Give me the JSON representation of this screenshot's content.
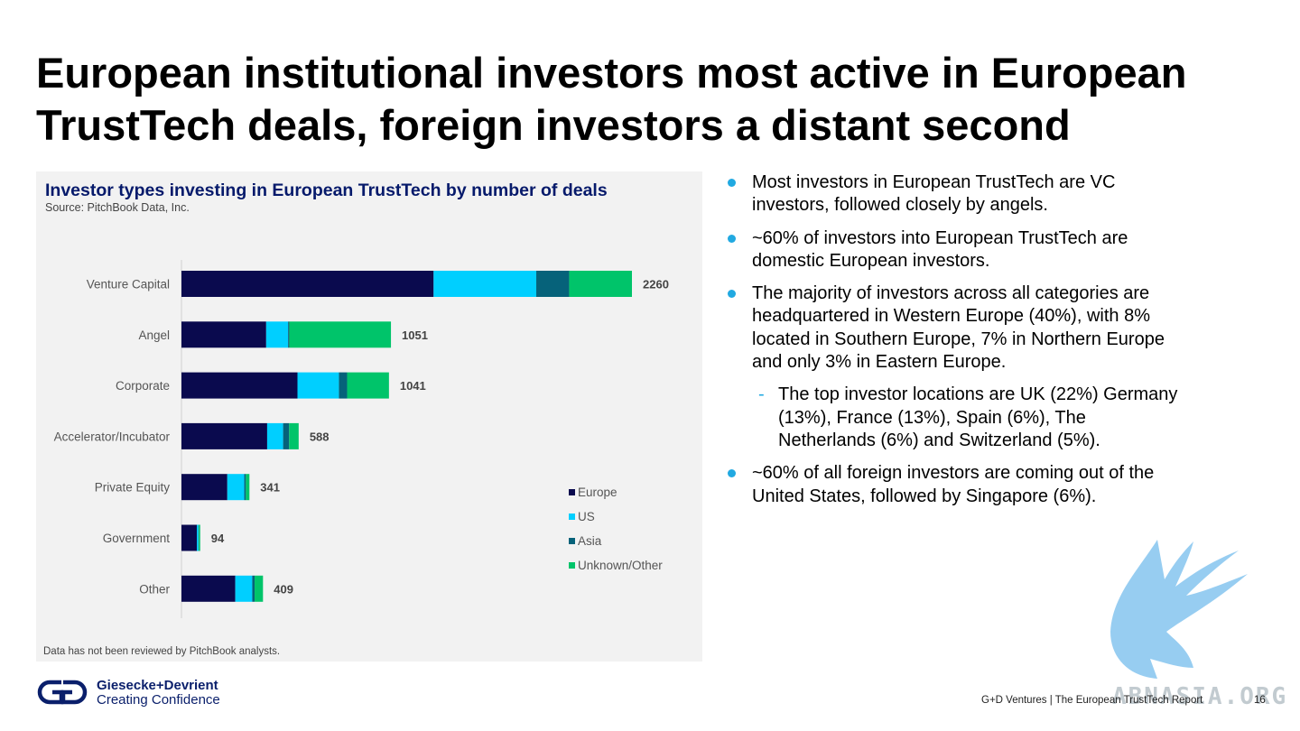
{
  "slide": {
    "title": "European institutional investors most active in European TrustTech deals, foreign investors a distant second",
    "page_number": "16",
    "footer": "G+D Ventures  |  The European TrustTech Report"
  },
  "chart_panel": {
    "title": "Investor types investing in European TrustTech by number of deals",
    "source": "Source: PitchBook Data, Inc.",
    "footnote": "Data has not been reviewed by PitchBook analysts."
  },
  "chart_data": {
    "type": "bar",
    "orientation": "horizontal",
    "stacked": true,
    "title": "Investor types investing in European TrustTech by number of deals",
    "categories": [
      "Venture Capital",
      "Angel",
      "Corporate",
      "Accelerator/Incubator",
      "Private Equity",
      "Government",
      "Other"
    ],
    "totals": [
      2260,
      1051,
      1041,
      588,
      341,
      94,
      409
    ],
    "series": [
      {
        "name": "Europe",
        "color": "#0a0a4e",
        "values": [
          1265,
          425,
          582,
          430,
          230,
          77,
          270
        ]
      },
      {
        "name": "US",
        "color": "#00cfff",
        "values": [
          515,
          110,
          208,
          80,
          85,
          8,
          85
        ]
      },
      {
        "name": "Asia",
        "color": "#06627a",
        "values": [
          165,
          6,
          41,
          30,
          8,
          2,
          12
        ]
      },
      {
        "name": "Unknown/Other",
        "color": "#00c46a",
        "values": [
          315,
          510,
          210,
          48,
          18,
          7,
          42
        ]
      }
    ],
    "xlim": [
      0,
      2260
    ],
    "grid": false,
    "legend_position": "right"
  },
  "bullets": [
    {
      "type": "bullet",
      "text": "Most investors in European TrustTech are VC investors, followed closely by angels."
    },
    {
      "type": "bullet",
      "text": "~60% of investors into European TrustTech are domestic European investors."
    },
    {
      "type": "bullet",
      "text": "The majority of  investors across all categories are headquartered in Western Europe (40%), with 8% located in Southern Europe, 7% in Northern Europe and only 3% in Eastern Europe."
    },
    {
      "type": "sub",
      "text": "The top investor locations are UK (22%) Germany (13%), France (13%), Spain (6%), The Netherlands (6%) and Switzerland (5%)."
    },
    {
      "type": "bullet",
      "text": "~60% of all foreign investors are coming out of the United States, followed by Singapore (6%)."
    }
  ],
  "logo": {
    "line1": "Giesecke+Devrient",
    "line2": "Creating Confidence"
  },
  "watermark": "ABNASIA.ORG",
  "colors": {
    "title_blue": "#061a6b",
    "bullet_blue": "#21a9e1"
  }
}
